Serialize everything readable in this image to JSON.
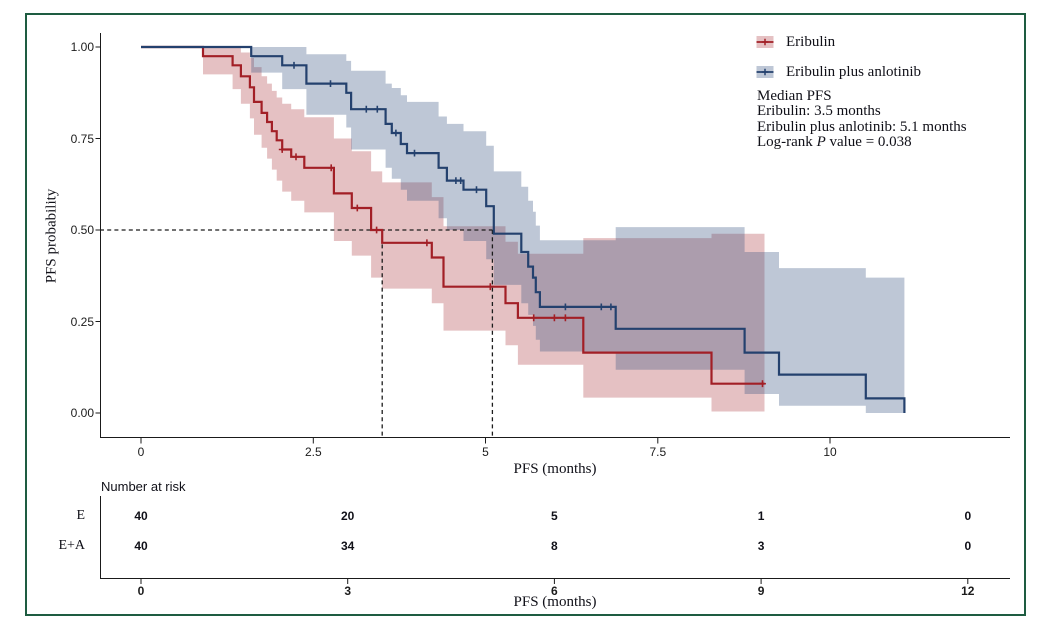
{
  "figure": {
    "background": "#FFFFFF",
    "border_color": "#1E5C41",
    "annotation": {
      "title": "Median PFS",
      "median_line_1": "Eribulin: 3.5 months",
      "median_line_2": "Eribulin plus anlotinib: 5.1 months",
      "logrank_prefix": "Log-rank ",
      "logrank_italic": "P",
      "logrank_suffix": " value = 0.038"
    }
  },
  "chart_data": {
    "type": "line",
    "subtype": "kaplan-meier-survival",
    "title": "",
    "xlabel": "PFS (months)",
    "ylabel": "PFS probability",
    "xlim": [
      0,
      12.6
    ],
    "ylim": [
      0,
      1
    ],
    "grid": false,
    "legend_position": "top-right-inside",
    "xticks": [
      0,
      2.5,
      5,
      7.5,
      10
    ],
    "xtick_labels": [
      "0",
      "2.5",
      "5",
      "7.5",
      "10"
    ],
    "yticks": [
      0,
      0.25,
      0.5,
      0.75,
      1
    ],
    "ytick_labels": [
      "0.00",
      "0.25",
      "0.50",
      "0.75",
      "1.00"
    ],
    "median_pfs": {
      "eribulin_months": 3.5,
      "eribulin_plus_anlotinib_months": 5.1
    },
    "log_rank_p_value": 0.038,
    "guide": {
      "dashed_y": 0.5,
      "dashed_x_medians": [
        3.5,
        5.1
      ]
    },
    "series": [
      {
        "name": "Eribulin",
        "color": "#A21F26",
        "band_color": "rgba(163,32,40,0.28)",
        "end_time": 9.05,
        "steps": [
          [
            0.0,
            1.0,
            1.0,
            1.0
          ],
          [
            0.9,
            0.975,
            0.925,
            1.0
          ],
          [
            1.33,
            0.95,
            0.885,
            1.0
          ],
          [
            1.45,
            0.92,
            0.845,
            0.985
          ],
          [
            1.58,
            0.89,
            0.805,
            0.97
          ],
          [
            1.64,
            0.85,
            0.76,
            0.945
          ],
          [
            1.75,
            0.82,
            0.725,
            0.92
          ],
          [
            1.83,
            0.795,
            0.695,
            0.9
          ],
          [
            1.9,
            0.77,
            0.665,
            0.88
          ],
          [
            1.97,
            0.745,
            0.635,
            0.862
          ],
          [
            2.05,
            0.72,
            0.605,
            0.845
          ],
          [
            2.18,
            0.7,
            0.58,
            0.83
          ],
          [
            2.37,
            0.67,
            0.548,
            0.808
          ],
          [
            2.8,
            0.6,
            0.47,
            0.75
          ],
          [
            3.06,
            0.56,
            0.43,
            0.715
          ],
          [
            3.34,
            0.5,
            0.37,
            0.66
          ],
          [
            3.5,
            0.465,
            0.34,
            0.63
          ],
          [
            4.22,
            0.425,
            0.3,
            0.59
          ],
          [
            4.39,
            0.345,
            0.225,
            0.51
          ],
          [
            5.29,
            0.3,
            0.185,
            0.468
          ],
          [
            5.47,
            0.26,
            0.132,
            0.435
          ],
          [
            6.42,
            0.165,
            0.042,
            0.478
          ],
          [
            8.28,
            0.08,
            0.004,
            0.49
          ]
        ],
        "censor_times": [
          2.05,
          2.25,
          2.76,
          3.14,
          3.42,
          4.15,
          5.07,
          5.7,
          6.0,
          6.16,
          9.02
        ]
      },
      {
        "name": "Eribulin plus anlotinib",
        "color": "#24416E",
        "band_color": "rgba(52,82,126,0.32)",
        "end_time": 11.08,
        "steps": [
          [
            0.0,
            1.0,
            1.0,
            1.0
          ],
          [
            1.6,
            0.975,
            0.93,
            1.0
          ],
          [
            2.05,
            0.95,
            0.885,
            1.0
          ],
          [
            2.4,
            0.9,
            0.815,
            0.98
          ],
          [
            2.98,
            0.875,
            0.78,
            0.962
          ],
          [
            3.05,
            0.83,
            0.72,
            0.935
          ],
          [
            3.55,
            0.79,
            0.67,
            0.9
          ],
          [
            3.64,
            0.765,
            0.64,
            0.888
          ],
          [
            3.77,
            0.735,
            0.61,
            0.868
          ],
          [
            3.86,
            0.71,
            0.58,
            0.85
          ],
          [
            4.32,
            0.67,
            0.532,
            0.81
          ],
          [
            4.44,
            0.635,
            0.5,
            0.79
          ],
          [
            4.68,
            0.61,
            0.47,
            0.77
          ],
          [
            5.01,
            0.565,
            0.42,
            0.73
          ],
          [
            5.12,
            0.49,
            0.35,
            0.66
          ],
          [
            5.52,
            0.44,
            0.3,
            0.618
          ],
          [
            5.62,
            0.4,
            0.268,
            0.58
          ],
          [
            5.69,
            0.37,
            0.238,
            0.55
          ],
          [
            5.73,
            0.33,
            0.2,
            0.512
          ],
          [
            5.79,
            0.29,
            0.168,
            0.472
          ],
          [
            6.89,
            0.23,
            0.118,
            0.508
          ],
          [
            8.76,
            0.165,
            0.052,
            0.44
          ],
          [
            9.26,
            0.105,
            0.02,
            0.396
          ],
          [
            10.52,
            0.04,
            0.0,
            0.37
          ],
          [
            11.08,
            0.0,
            0.0,
            0.37
          ]
        ],
        "censor_times": [
          2.22,
          2.75,
          3.27,
          3.43,
          3.7,
          3.97,
          4.57,
          4.64,
          4.87,
          6.16,
          6.68,
          6.82
        ]
      }
    ],
    "risk_table": {
      "header": "Number at risk",
      "xlabel": "PFS (months)",
      "xticks": [
        0,
        3,
        6,
        9,
        12
      ],
      "xtick_labels": [
        "0",
        "3",
        "6",
        "9",
        "12"
      ],
      "rows": [
        {
          "label": "E",
          "counts": [
            40,
            20,
            5,
            1,
            0
          ]
        },
        {
          "label": "E+A",
          "counts": [
            40,
            34,
            8,
            3,
            0
          ]
        }
      ]
    }
  }
}
